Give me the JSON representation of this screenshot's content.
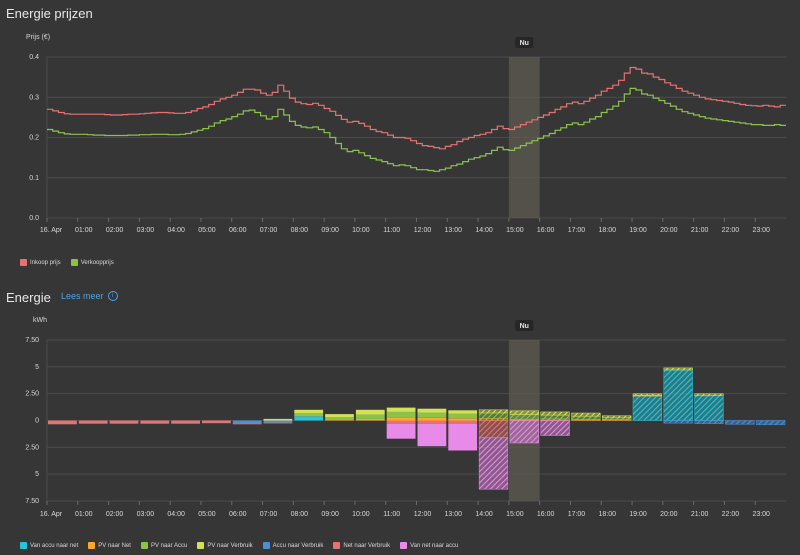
{
  "prices_card": {
    "title": "Energie prijzen",
    "unit_label": "Prijs (€)",
    "now_label": "Nu",
    "legend": [
      {
        "label": "Inkoop prijs",
        "color": "#e57373"
      },
      {
        "label": "Verkoopprijs",
        "color": "#8bc34a"
      }
    ]
  },
  "energy_card": {
    "title": "Energie",
    "more_label": "Lees meer",
    "info_icon": "info-icon",
    "unit_label": "kWh",
    "now_label": "Nu",
    "legend": [
      {
        "label": "Van accu naar net",
        "color": "#26c6da"
      },
      {
        "label": "PV naar Net",
        "color": "#ffa726"
      },
      {
        "label": "PV naar Accu",
        "color": "#8bc34a"
      },
      {
        "label": "PV naar Verbruik",
        "color": "#d4e157"
      },
      {
        "label": "Accu naar Verbruik",
        "color": "#4a90d9"
      },
      {
        "label": "Net naar Verbruik",
        "color": "#e57373"
      },
      {
        "label": "Van net naar accu",
        "color": "#e88ae8"
      }
    ]
  },
  "chart_data": [
    {
      "type": "line",
      "step": true,
      "x_ticks": [
        "16. Apr",
        "01:00",
        "02:00",
        "03:00",
        "04:00",
        "05:00",
        "06:00",
        "07:00",
        "08:00",
        "09:00",
        "10:00",
        "11:00",
        "12:00",
        "13:00",
        "14:00",
        "15:00",
        "16:00",
        "17:00",
        "18:00",
        "19:00",
        "20:00",
        "21:00",
        "22:00",
        "23:00"
      ],
      "y_ticks": [
        "0.0",
        "0.1",
        "0.2",
        "0.3",
        "0.4"
      ],
      "ylim": [
        0,
        0.4
      ],
      "x_range_hours": [
        0,
        24
      ],
      "grid": true,
      "now_band_hours": [
        15,
        16
      ],
      "series": [
        {
          "name": "Inkoop prijs",
          "color": "#e57373",
          "values": [
            0.27,
            0.266,
            0.262,
            0.259,
            0.258,
            0.258,
            0.258,
            0.258,
            0.258,
            0.258,
            0.257,
            0.256,
            0.256,
            0.257,
            0.258,
            0.258,
            0.259,
            0.26,
            0.261,
            0.262,
            0.262,
            0.261,
            0.26,
            0.26,
            0.262,
            0.266,
            0.272,
            0.276,
            0.282,
            0.29,
            0.296,
            0.3,
            0.305,
            0.312,
            0.32,
            0.32,
            0.318,
            0.31,
            0.305,
            0.312,
            0.33,
            0.315,
            0.298,
            0.288,
            0.284,
            0.282,
            0.285,
            0.28,
            0.272,
            0.265,
            0.255,
            0.245,
            0.238,
            0.24,
            0.235,
            0.228,
            0.22,
            0.215,
            0.212,
            0.206,
            0.2,
            0.2,
            0.198,
            0.192,
            0.185,
            0.18,
            0.178,
            0.175,
            0.172,
            0.178,
            0.182,
            0.19,
            0.196,
            0.2,
            0.205,
            0.208,
            0.212,
            0.22,
            0.228,
            0.222,
            0.22,
            0.226,
            0.232,
            0.238,
            0.244,
            0.25,
            0.256,
            0.262,
            0.27,
            0.276,
            0.284,
            0.288,
            0.284,
            0.29,
            0.298,
            0.305,
            0.315,
            0.322,
            0.33,
            0.342,
            0.36,
            0.374,
            0.37,
            0.36,
            0.358,
            0.35,
            0.344,
            0.336,
            0.33,
            0.322,
            0.315,
            0.31,
            0.305,
            0.3,
            0.296,
            0.294,
            0.292,
            0.29,
            0.288,
            0.285,
            0.282,
            0.28,
            0.279,
            0.278,
            0.28,
            0.278,
            0.276,
            0.28
          ]
        },
        {
          "name": "Verkoopprijs",
          "color": "#8bc34a",
          "values": [
            0.22,
            0.216,
            0.212,
            0.209,
            0.208,
            0.208,
            0.208,
            0.207,
            0.206,
            0.206,
            0.205,
            0.205,
            0.205,
            0.205,
            0.206,
            0.206,
            0.207,
            0.207,
            0.208,
            0.208,
            0.208,
            0.207,
            0.207,
            0.208,
            0.21,
            0.214,
            0.218,
            0.222,
            0.228,
            0.236,
            0.242,
            0.246,
            0.252,
            0.258,
            0.266,
            0.268,
            0.262,
            0.254,
            0.246,
            0.252,
            0.27,
            0.256,
            0.24,
            0.23,
            0.226,
            0.224,
            0.226,
            0.22,
            0.212,
            0.2,
            0.185,
            0.172,
            0.165,
            0.168,
            0.162,
            0.155,
            0.148,
            0.144,
            0.14,
            0.135,
            0.13,
            0.132,
            0.13,
            0.125,
            0.12,
            0.12,
            0.118,
            0.116,
            0.12,
            0.124,
            0.13,
            0.134,
            0.14,
            0.146,
            0.15,
            0.154,
            0.16,
            0.168,
            0.176,
            0.17,
            0.168,
            0.174,
            0.18,
            0.186,
            0.192,
            0.198,
            0.204,
            0.21,
            0.218,
            0.224,
            0.232,
            0.236,
            0.232,
            0.238,
            0.246,
            0.252,
            0.262,
            0.27,
            0.278,
            0.29,
            0.308,
            0.322,
            0.318,
            0.308,
            0.305,
            0.298,
            0.292,
            0.285,
            0.278,
            0.27,
            0.264,
            0.26,
            0.256,
            0.252,
            0.248,
            0.246,
            0.244,
            0.242,
            0.24,
            0.238,
            0.236,
            0.234,
            0.232,
            0.232,
            0.23,
            0.23,
            0.232,
            0.23
          ]
        }
      ]
    },
    {
      "type": "bar",
      "stacked": true,
      "categories": [
        "00:00",
        "01:00",
        "02:00",
        "03:00",
        "04:00",
        "05:00",
        "06:00",
        "07:00",
        "08:00",
        "09:00",
        "10:00",
        "11:00",
        "12:00",
        "13:00",
        "14:00",
        "15:00",
        "16:00",
        "17:00",
        "18:00",
        "19:00",
        "20:00",
        "21:00",
        "22:00",
        "23:00"
      ],
      "x_ticks": [
        "16. Apr",
        "01:00",
        "02:00",
        "03:00",
        "04:00",
        "05:00",
        "06:00",
        "07:00",
        "08:00",
        "09:00",
        "10:00",
        "11:00",
        "12:00",
        "13:00",
        "14:00",
        "15:00",
        "16:00",
        "17:00",
        "18:00",
        "19:00",
        "20:00",
        "21:00",
        "22:00",
        "23:00"
      ],
      "y_ticks": [
        "7.50",
        "5",
        "2.50",
        "0",
        "2.50",
        "5",
        "7.50"
      ],
      "ylim": [
        -7.5,
        7.5
      ],
      "grid": true,
      "now_band_hours": [
        15,
        16
      ],
      "forecast_from_hour": 14,
      "series": [
        {
          "name": "Van accu naar net",
          "color": "#26c6da",
          "values": [
            0,
            0,
            0,
            0,
            0,
            0,
            0,
            0,
            0.4,
            0,
            0,
            0,
            0,
            0,
            0,
            0,
            0,
            0,
            0,
            2.3,
            4.7,
            2.3,
            0,
            0
          ]
        },
        {
          "name": "PV naar Net",
          "color": "#ffa726",
          "values": [
            0,
            0,
            0,
            0,
            0,
            0,
            0,
            0,
            0.1,
            0.1,
            0.15,
            0.3,
            0.3,
            0.2,
            0.2,
            0.1,
            0.15,
            0.1,
            0.1,
            0.05,
            0,
            0,
            0,
            0
          ]
        },
        {
          "name": "PV naar Accu",
          "color": "#8bc34a",
          "values": [
            0,
            0,
            0,
            0,
            0,
            0,
            0,
            0,
            0.2,
            0.2,
            0.4,
            0.5,
            0.45,
            0.45,
            0.5,
            0.45,
            0.35,
            0.3,
            0.15,
            0,
            0,
            0,
            0,
            0
          ]
        },
        {
          "name": "PV naar Verbruik",
          "color": "#d4e157",
          "values": [
            0,
            0,
            0,
            0,
            0,
            0,
            0,
            0.15,
            0.3,
            0.3,
            0.45,
            0.4,
            0.35,
            0.3,
            0.3,
            0.35,
            0.3,
            0.3,
            0.2,
            0.15,
            0.2,
            0.2,
            0,
            0
          ]
        },
        {
          "name": "Accu naar Verbruik",
          "color": "#4a90d9",
          "values": [
            0,
            0,
            0,
            0,
            0,
            0,
            -0.25,
            -0.2,
            0,
            0,
            0,
            0,
            0,
            0,
            0,
            0,
            0,
            0,
            0,
            0,
            -0.25,
            -0.3,
            -0.35,
            -0.4
          ]
        },
        {
          "name": "Net naar Verbruik",
          "color": "#e57373",
          "values": [
            -0.35,
            -0.3,
            -0.3,
            -0.3,
            -0.3,
            -0.25,
            -0.1,
            -0.05,
            0,
            0,
            0,
            -0.3,
            -0.3,
            -0.3,
            -1.6,
            0,
            0,
            0,
            0,
            0,
            0,
            0,
            0,
            0
          ]
        },
        {
          "name": "Van net naar accu",
          "color": "#e88ae8",
          "values": [
            0,
            0,
            0,
            0,
            0,
            0,
            0,
            0,
            0,
            0,
            0,
            -1.4,
            -2.1,
            -2.5,
            -4.8,
            -2.1,
            -1.4,
            0,
            0,
            0,
            0,
            0,
            0,
            0
          ]
        }
      ]
    }
  ]
}
